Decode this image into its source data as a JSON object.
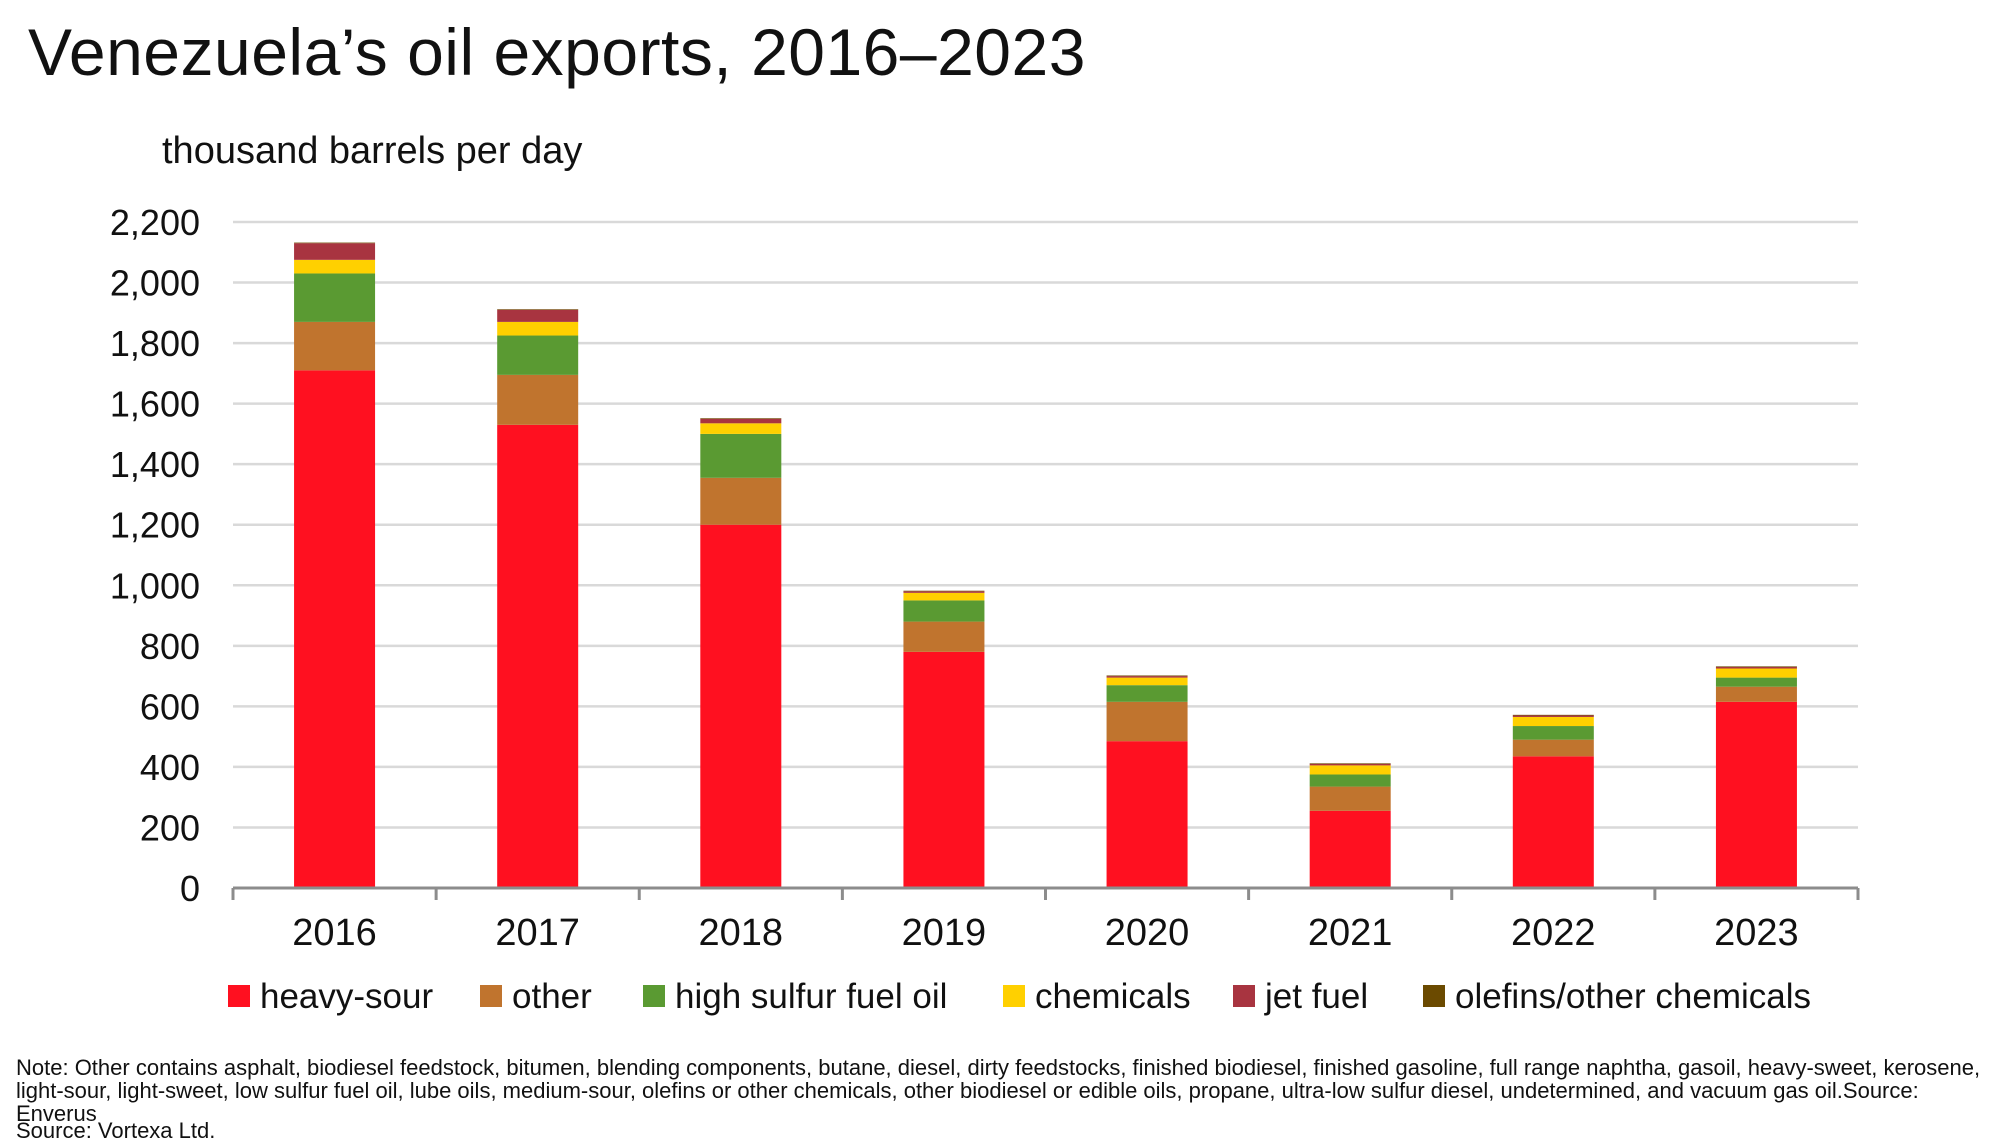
{
  "chart_data": {
    "type": "bar",
    "stacked": true,
    "title": "Venezuela’s oil exports, 2016–2023",
    "ylabel": "thousand barrels per day",
    "xlabel": "",
    "categories": [
      "2016",
      "2017",
      "2018",
      "2019",
      "2020",
      "2021",
      "2022",
      "2023"
    ],
    "ylim": [
      0,
      2200
    ],
    "yticks": [
      0,
      200,
      400,
      600,
      800,
      1000,
      1200,
      1400,
      1600,
      1800,
      2000,
      2200
    ],
    "ytick_labels": [
      "0",
      "200",
      "400",
      "600",
      "800",
      "1,000",
      "1,200",
      "1,400",
      "1,600",
      "1,800",
      "2,000",
      "2,200"
    ],
    "grid": true,
    "legend_position": "bottom",
    "series": [
      {
        "name": "heavy-sour",
        "color": "#ff1020",
        "values": [
          1710,
          1530,
          1200,
          780,
          485,
          255,
          435,
          615
        ]
      },
      {
        "name": "other",
        "color": "#c0742e",
        "values": [
          160,
          165,
          155,
          100,
          130,
          80,
          55,
          50
        ]
      },
      {
        "name": "high sulfur fuel oil",
        "color": "#5a9a32",
        "values": [
          160,
          130,
          145,
          70,
          55,
          40,
          45,
          30
        ]
      },
      {
        "name": "chemicals",
        "color": "#ffd000",
        "values": [
          45,
          45,
          35,
          25,
          25,
          30,
          30,
          30
        ]
      },
      {
        "name": "jet fuel",
        "color": "#a83440",
        "values": [
          55,
          40,
          15,
          5,
          5,
          5,
          5,
          5
        ]
      },
      {
        "name": "olefins/other chemicals",
        "color": "#6b4a00",
        "values": [
          2,
          2,
          2,
          2,
          2,
          2,
          2,
          2
        ]
      }
    ]
  },
  "note": "Note: Other contains asphalt, biodiesel feedstock, bitumen, blending components, butane, diesel, dirty feedstocks, finished biodiesel, finished gasoline, full range naphtha, gasoil, heavy-sweet, kerosene, light-sour, light-sweet, low sulfur fuel oil, lube oils, medium-sour, olefins or other chemicals, other biodiesel or edible oils, propane, ultra-low sulfur diesel, undetermined, and vacuum gas oil.Source: Enverus",
  "source": "Source: Vortexa Ltd."
}
